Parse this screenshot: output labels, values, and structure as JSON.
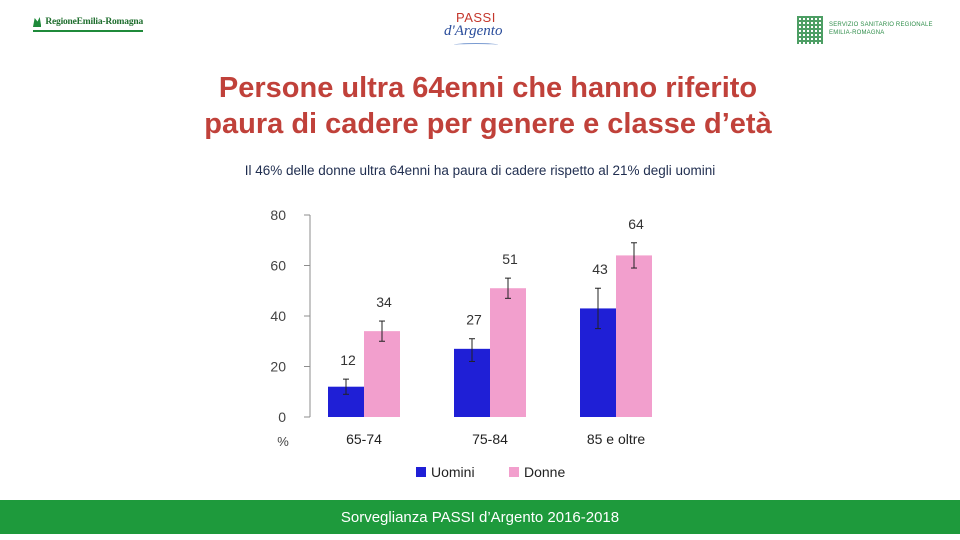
{
  "header": {
    "logo_left_text": "RegioneEmilia-Romagna",
    "logo_center_top": "PASSI",
    "logo_center_bottom": "d'Argento",
    "logo_right_line1": "SERVIZIO SANITARIO REGIONALE",
    "logo_right_line2": "EMILIA-ROMAGNA"
  },
  "title_line1": "Persone ultra 64enni che hanno riferito",
  "title_line2": "paura di cadere per genere e classe d’età",
  "subtitle": "Il 46% delle donne ultra 64enni ha paura di cadere rispetto al 21% degli uomini",
  "footer": "Sorveglianza PASSI d’Argento 2016-2018",
  "colors": {
    "title": "#c0413a",
    "uomini": "#1f1fd6",
    "donne": "#f29fcd",
    "footer_bg": "#1e9a3c"
  },
  "chart_data": {
    "type": "bar",
    "categories": [
      "65-74",
      "75-84",
      "85 e oltre"
    ],
    "series": [
      {
        "name": "Uomini",
        "values": [
          12,
          27,
          43
        ],
        "error_low": [
          9,
          22,
          35
        ],
        "error_high": [
          15,
          31,
          51
        ]
      },
      {
        "name": "Donne",
        "values": [
          34,
          51,
          64
        ],
        "error_low": [
          30,
          47,
          59
        ],
        "error_high": [
          38,
          55,
          69
        ]
      }
    ],
    "ylim": [
      0,
      80
    ],
    "yticks": [
      0,
      20,
      40,
      60,
      80
    ],
    "ylabel": "%",
    "legend_position": "bottom",
    "grid": false
  }
}
